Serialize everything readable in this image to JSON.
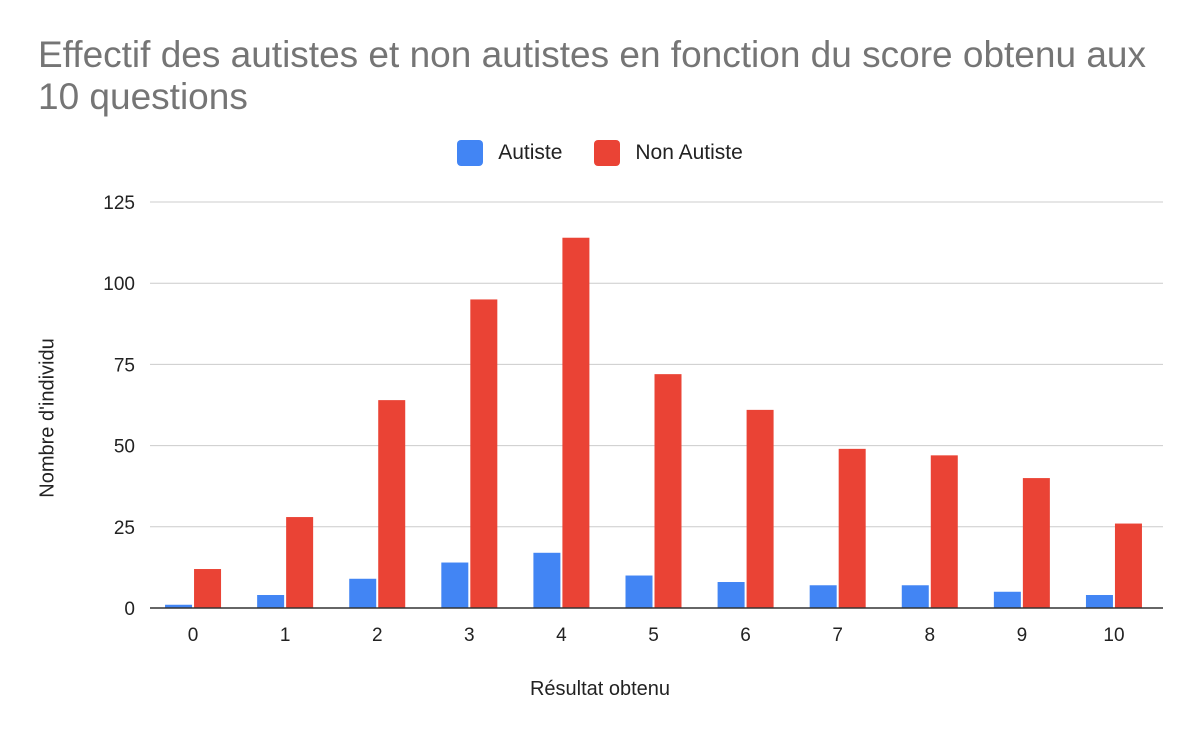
{
  "chart_data": {
    "type": "bar",
    "title": "Effectif des autistes et non autistes en fonction du score obtenu aux 10 questions",
    "xlabel": "Résultat obtenu",
    "ylabel": "Nombre d'individu",
    "categories": [
      "0",
      "1",
      "2",
      "3",
      "4",
      "5",
      "6",
      "7",
      "8",
      "9",
      "10"
    ],
    "series": [
      {
        "name": "Autiste",
        "color": "#4285f4",
        "values": [
          1,
          4,
          9,
          14,
          17,
          10,
          8,
          7,
          7,
          5,
          4
        ]
      },
      {
        "name": "Non Autiste",
        "color": "#ea4335",
        "values": [
          12,
          28,
          64,
          95,
          114,
          72,
          61,
          49,
          47,
          40,
          26
        ]
      }
    ],
    "ylim": [
      0,
      125
    ],
    "yticks": [
      0,
      25,
      50,
      75,
      100,
      125
    ],
    "grid": true,
    "legend_position": "top"
  }
}
